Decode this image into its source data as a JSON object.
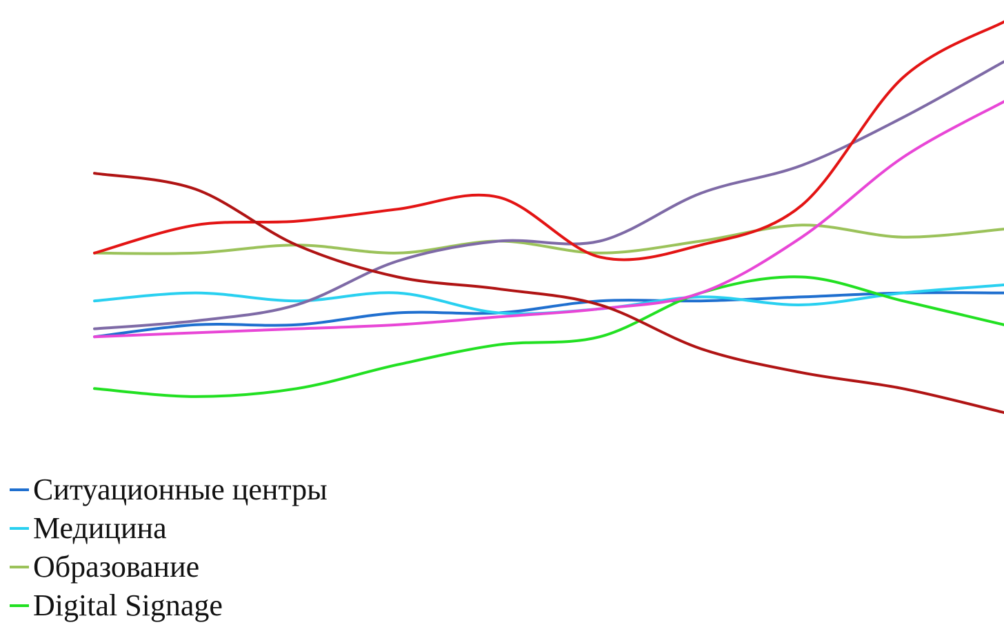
{
  "chart_data": {
    "type": "line",
    "title": "",
    "xlabel": "",
    "ylabel": "",
    "x": [
      1,
      2,
      3,
      4,
      5,
      6,
      7,
      8,
      9,
      10
    ],
    "ylim": [
      0,
      100
    ],
    "grid": false,
    "legend_position": "bottom-left",
    "series": [
      {
        "name": "Ситуационные центры",
        "color": "#1f6fcf",
        "values": [
          19,
          22,
          22,
          25,
          25,
          28,
          28,
          29,
          30,
          30
        ]
      },
      {
        "name": "Медицина",
        "color": "#29d0f0",
        "values": [
          28,
          30,
          28,
          30,
          25,
          26,
          29,
          27,
          30,
          32
        ]
      },
      {
        "name": "Образование",
        "color": "#9bc25a",
        "values": [
          40,
          40,
          42,
          40,
          43,
          40,
          43,
          47,
          44,
          46
        ]
      },
      {
        "name": "Digital Signage",
        "color": "#22e022",
        "values": [
          6,
          4,
          6,
          12,
          17,
          19,
          30,
          34,
          28,
          22
        ]
      },
      {
        "name": "",
        "color": "#7e6aa6",
        "values": [
          21,
          23,
          27,
          38,
          43,
          43,
          55,
          62,
          74,
          88
        ]
      },
      {
        "name": "",
        "color": "#e31414",
        "values": [
          40,
          47,
          48,
          51,
          54,
          39,
          42,
          52,
          84,
          98
        ]
      },
      {
        "name": "",
        "color": "#e846d6",
        "values": [
          19,
          20,
          21,
          22,
          24,
          26,
          30,
          44,
          64,
          78
        ]
      },
      {
        "name": "",
        "color": "#b01414",
        "values": [
          60,
          56,
          42,
          34,
          31,
          27,
          16,
          10,
          6,
          0
        ]
      }
    ]
  },
  "legend": {
    "items": [
      {
        "label": "Ситуационные центры",
        "color": "#1f6fcf"
      },
      {
        "label": "Медицина",
        "color": "#29d0f0"
      },
      {
        "label": "Образование",
        "color": "#9bc25a"
      },
      {
        "label": "Digital Signage",
        "color": "#22e022"
      }
    ]
  }
}
